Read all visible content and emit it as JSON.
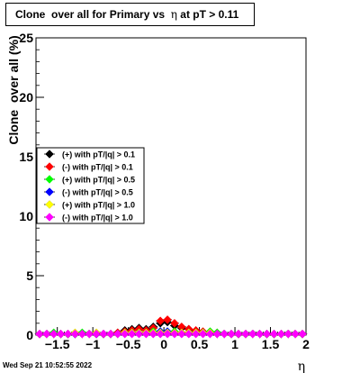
{
  "title": {
    "prefix": "Clone  over all for Primary vs  ",
    "symbol": "η",
    "suffix": " at pT > 0.11"
  },
  "footer": {
    "timestamp": "Wed Sep 21 10:52:55 2022"
  },
  "chart_data": {
    "type": "scatter",
    "title": "Clone  over all for Primary vs  η at pT > 0.11",
    "xlabel": "η",
    "ylabel": "Clone  over all (%)",
    "xlim": [
      -1.8,
      2.0
    ],
    "ylim": [
      0,
      25
    ],
    "x_ticks": [
      -1.5,
      -1,
      -0.5,
      0,
      0.5,
      1,
      1.5,
      2
    ],
    "x_tick_labels": [
      "−1.5",
      "−1",
      "−0.5",
      "0",
      "0.5",
      "1",
      "1.5",
      "2"
    ],
    "y_ticks": [
      0,
      5,
      10,
      15,
      20,
      25
    ],
    "y_tick_labels": [
      "0",
      "5",
      "10",
      "15",
      "20",
      "25"
    ],
    "grid": true,
    "legend_position": "left-middle",
    "series": [
      {
        "name": "(+) with pT/|q| > 0.1",
        "color": "#000000",
        "x": [
          -1.75,
          -1.65,
          -1.55,
          -1.45,
          -1.35,
          -1.25,
          -1.15,
          -1.05,
          -0.95,
          -0.85,
          -0.75,
          -0.65,
          -0.55,
          -0.45,
          -0.35,
          -0.25,
          -0.15,
          -0.05,
          0.05,
          0.15,
          0.25,
          0.35,
          0.45,
          0.55,
          0.65,
          0.75,
          0.85,
          0.95,
          1.05,
          1.15,
          1.25,
          1.35,
          1.45,
          1.55,
          1.65,
          1.75,
          1.85,
          1.95
        ],
        "y": [
          0.1,
          0.1,
          0.1,
          0.1,
          0.1,
          0.1,
          0.1,
          0.1,
          0.1,
          0.1,
          0.1,
          0.2,
          0.4,
          0.5,
          0.6,
          0.5,
          0.7,
          1.0,
          1.1,
          0.8,
          0.6,
          0.5,
          0.3,
          0.3,
          0.2,
          0.1,
          0.1,
          0.1,
          0.1,
          0.1,
          0.1,
          0.1,
          0.1,
          0.1,
          0.1,
          0.1,
          0.1,
          0.1
        ]
      },
      {
        "name": "(-) with pT/|q| > 0.1",
        "color": "#ff0000",
        "x": [
          -1.75,
          -1.65,
          -1.55,
          -1.45,
          -1.35,
          -1.25,
          -1.15,
          -1.05,
          -0.95,
          -0.85,
          -0.75,
          -0.65,
          -0.55,
          -0.45,
          -0.35,
          -0.25,
          -0.15,
          -0.05,
          0.05,
          0.15,
          0.25,
          0.35,
          0.45,
          0.55,
          0.65,
          0.75,
          0.85,
          0.95,
          1.05,
          1.15,
          1.25,
          1.35,
          1.45,
          1.55,
          1.65,
          1.75,
          1.85,
          1.95
        ],
        "y": [
          0.1,
          0.1,
          0.1,
          0.1,
          0.1,
          0.1,
          0.1,
          0.1,
          0.1,
          0.1,
          0.1,
          0.2,
          0.3,
          0.4,
          0.5,
          0.4,
          0.6,
          1.2,
          1.3,
          1.0,
          0.7,
          0.5,
          0.4,
          0.3,
          0.2,
          0.2,
          0.1,
          0.1,
          0.1,
          0.1,
          0.1,
          0.1,
          0.1,
          0.1,
          0.1,
          0.1,
          0.1,
          0.1
        ]
      },
      {
        "name": "(+) with pT/|q| > 0.5",
        "color": "#00ff00",
        "x": [
          -1.75,
          -1.65,
          -1.55,
          -1.45,
          -1.35,
          -1.25,
          -1.15,
          -1.05,
          -0.95,
          -0.85,
          -0.75,
          -0.65,
          -0.55,
          -0.45,
          -0.35,
          -0.25,
          -0.15,
          -0.05,
          0.05,
          0.15,
          0.25,
          0.35,
          0.45,
          0.55,
          0.65,
          0.75,
          0.85,
          0.95,
          1.05,
          1.15,
          1.25,
          1.35,
          1.45,
          1.55,
          1.65,
          1.75,
          1.85,
          1.95
        ],
        "y": [
          0.1,
          0.1,
          0.2,
          0.1,
          0.1,
          0.1,
          0.2,
          0.1,
          0.1,
          0.1,
          0.1,
          0.1,
          0.2,
          0.2,
          0.2,
          0.2,
          0.3,
          0.3,
          0.3,
          0.3,
          0.2,
          0.2,
          0.2,
          0.2,
          0.3,
          0.2,
          0.1,
          0.1,
          0.1,
          0.1,
          0.1,
          0.1,
          0.1,
          0.1,
          0.1,
          0.1,
          0.1,
          0.1
        ]
      },
      {
        "name": "(-) with pT/|q| > 0.5",
        "color": "#0000ff",
        "x": [
          -1.75,
          -1.65,
          -1.55,
          -1.45,
          -1.35,
          -1.25,
          -1.15,
          -1.05,
          -0.95,
          -0.85,
          -0.75,
          -0.65,
          -0.55,
          -0.45,
          -0.35,
          -0.25,
          -0.15,
          -0.05,
          0.05,
          0.15,
          0.25,
          0.35,
          0.45,
          0.55,
          0.65,
          0.75,
          0.85,
          0.95,
          1.05,
          1.15,
          1.25,
          1.35,
          1.45,
          1.55,
          1.65,
          1.75,
          1.85,
          1.95
        ],
        "y": [
          0.1,
          0.1,
          0.1,
          0.1,
          0.1,
          0.1,
          0.1,
          0.1,
          0.1,
          0.1,
          0.1,
          0.1,
          0.2,
          0.2,
          0.2,
          0.2,
          0.2,
          0.3,
          0.3,
          0.2,
          0.2,
          0.2,
          0.2,
          0.2,
          0.2,
          0.1,
          0.1,
          0.1,
          0.1,
          0.1,
          0.1,
          0.1,
          0.1,
          0.1,
          0.1,
          0.1,
          0.1,
          0.1
        ]
      },
      {
        "name": "(+) with pT/|q| > 1.0",
        "color": "#ffff00",
        "x": [
          -1.75,
          -1.65,
          -1.55,
          -1.45,
          -1.35,
          -1.25,
          -1.15,
          -1.05,
          -0.95,
          -0.85,
          -0.75,
          -0.65,
          -0.55,
          -0.45,
          -0.35,
          -0.25,
          -0.15,
          -0.05,
          0.05,
          0.15,
          0.25,
          0.35,
          0.45,
          0.55,
          0.65,
          0.75,
          0.85,
          0.95,
          1.05,
          1.15,
          1.25,
          1.35,
          1.45,
          1.55,
          1.65,
          1.75,
          1.85,
          1.95
        ],
        "y": [
          0.1,
          0.1,
          0.1,
          0.1,
          0.1,
          0.2,
          0.1,
          0.1,
          0.2,
          0.1,
          0.1,
          0.1,
          0.2,
          0.2,
          0.2,
          0.2,
          0.2,
          0.2,
          0.2,
          0.2,
          0.2,
          0.2,
          0.2,
          0.2,
          0.2,
          0.1,
          0.1,
          0.1,
          0.1,
          0.1,
          0.1,
          0.1,
          0.1,
          0.1,
          0.1,
          0.1,
          0.1,
          0.1
        ]
      },
      {
        "name": "(-) with pT/|q| > 1.0",
        "color": "#ff00ff",
        "x": [
          -1.75,
          -1.65,
          -1.55,
          -1.45,
          -1.35,
          -1.25,
          -1.15,
          -1.05,
          -0.95,
          -0.85,
          -0.75,
          -0.65,
          -0.55,
          -0.45,
          -0.35,
          -0.25,
          -0.15,
          -0.05,
          0.05,
          0.15,
          0.25,
          0.35,
          0.45,
          0.55,
          0.65,
          0.75,
          0.85,
          0.95,
          1.05,
          1.15,
          1.25,
          1.35,
          1.45,
          1.55,
          1.65,
          1.75,
          1.85,
          1.95
        ],
        "y": [
          0.1,
          0.1,
          0.1,
          0.1,
          0.1,
          0.1,
          0.1,
          0.1,
          0.1,
          0.1,
          0.1,
          0.1,
          0.1,
          0.1,
          0.1,
          0.1,
          0.1,
          0.1,
          0.1,
          0.1,
          0.1,
          0.1,
          0.1,
          0.1,
          0.1,
          0.1,
          0.1,
          0.1,
          0.1,
          0.1,
          0.1,
          0.1,
          0.1,
          0.1,
          0.1,
          0.1,
          0.1,
          0.1
        ]
      }
    ]
  }
}
